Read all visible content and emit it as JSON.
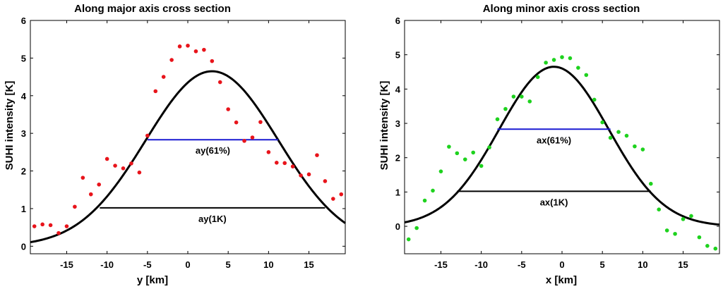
{
  "chart_data": [
    {
      "type": "scatter",
      "title": "Along major axis cross section",
      "xlabel": "y [km]",
      "ylabel": "SUHI intensity [K]",
      "xlim": [
        -19.5,
        19.5
      ],
      "ylim": [
        -0.2,
        6
      ],
      "xticks": [
        -15,
        -10,
        -5,
        0,
        5,
        10,
        15
      ],
      "yticks": [
        0,
        1,
        2,
        3,
        4,
        5,
        6
      ],
      "grid": false,
      "marker_color": "#e8141b",
      "curve": {
        "name": "Gaussian fit",
        "color": "#000000",
        "peak": 4.65,
        "center": 3.0,
        "sigma": 8.2,
        "xmin": -19.5,
        "xmax": 19.5
      },
      "points": {
        "x": [
          -19,
          -18,
          -17,
          -16,
          -15,
          -14,
          -13,
          -12,
          -11,
          -10,
          -9,
          -8,
          -7,
          -6,
          -5,
          -4,
          -3,
          -2,
          -1,
          0,
          1,
          2,
          3,
          4,
          5,
          6,
          7,
          8,
          9,
          10,
          11,
          12,
          13,
          14,
          15,
          16,
          17,
          18,
          19
        ],
        "y": [
          0.53,
          0.58,
          0.56,
          0.35,
          0.53,
          1.05,
          1.82,
          1.38,
          1.64,
          2.32,
          2.14,
          2.07,
          2.2,
          1.96,
          2.94,
          4.12,
          4.5,
          4.95,
          5.31,
          5.33,
          5.18,
          5.22,
          4.92,
          4.36,
          3.64,
          3.29,
          2.8,
          2.89,
          3.3,
          2.5,
          2.22,
          2.21,
          2.12,
          1.88,
          1.91,
          2.42,
          1.73,
          1.26,
          1.38
        ]
      },
      "segments": [
        {
          "label": "ay(61%)",
          "value": 2.83,
          "x1": -5.0,
          "x2": 11.2,
          "color": "#1a1ad2"
        },
        {
          "label": "ay(1K)",
          "value": 1.02,
          "x1": -10.9,
          "x2": 17.0,
          "color": "#000000"
        }
      ]
    },
    {
      "type": "scatter",
      "title": "Along minor axis cross section",
      "xlabel": "x [km]",
      "ylabel": "SUHI intensity [K]",
      "xlim": [
        -19.5,
        19.5
      ],
      "ylim": [
        -0.8,
        6
      ],
      "xticks": [
        -15,
        -10,
        -5,
        0,
        5,
        10,
        15
      ],
      "yticks": [
        0,
        1,
        2,
        3,
        4,
        5,
        6
      ],
      "grid": false,
      "marker_color": "#1ed21e",
      "curve": {
        "name": "Gaussian fit",
        "color": "#000000",
        "peak": 4.65,
        "center": -1.0,
        "sigma": 6.8,
        "xmin": -19.5,
        "xmax": 19.5
      },
      "points": {
        "x": [
          -19,
          -18,
          -17,
          -16,
          -15,
          -14,
          -13,
          -12,
          -11,
          -10,
          -9,
          -8,
          -7,
          -6,
          -5,
          -4,
          -3,
          -2,
          -1,
          0,
          1,
          2,
          3,
          4,
          5,
          6,
          7,
          8,
          9,
          10,
          11,
          12,
          13,
          14,
          15,
          16,
          17,
          18,
          19
        ],
        "y": [
          -0.38,
          -0.05,
          0.75,
          1.04,
          1.6,
          2.32,
          2.13,
          1.95,
          2.15,
          1.76,
          2.3,
          3.12,
          3.42,
          3.78,
          3.78,
          3.64,
          4.35,
          4.77,
          4.85,
          4.93,
          4.9,
          4.62,
          4.41,
          3.69,
          3.03,
          2.58,
          2.75,
          2.64,
          2.33,
          2.24,
          1.24,
          0.49,
          -0.12,
          -0.22,
          0.21,
          0.3,
          -0.32,
          -0.57,
          -0.65
        ]
      },
      "segments": [
        {
          "label": "ax(61%)",
          "value": 2.83,
          "x1": -8.0,
          "x2": 6.0,
          "color": "#1a1ad2"
        },
        {
          "label": "ax(1K)",
          "value": 1.02,
          "x1": -13.0,
          "x2": 11.0,
          "color": "#000000"
        }
      ]
    }
  ]
}
